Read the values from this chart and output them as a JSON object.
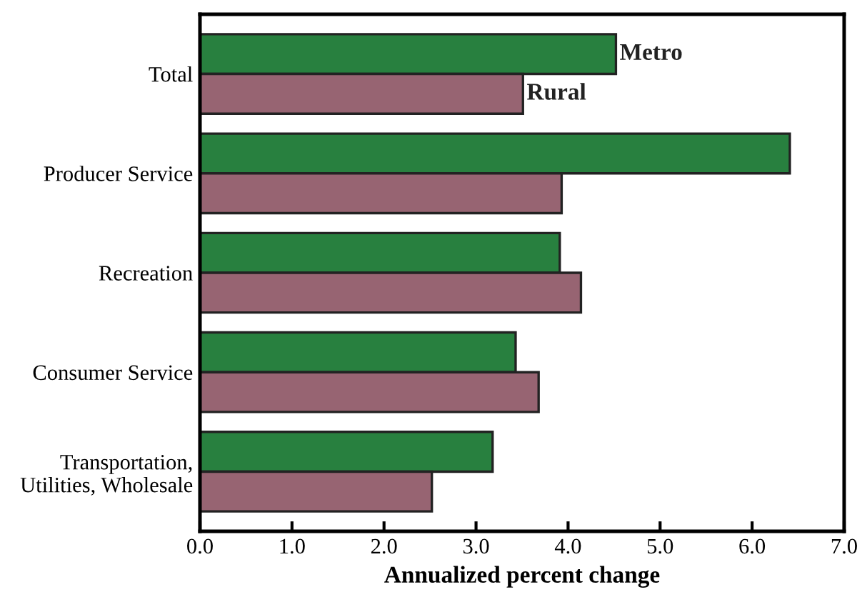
{
  "chart_data": {
    "type": "bar",
    "orientation": "horizontal",
    "xlabel": "Annualized percent change",
    "categories": [
      "Total",
      "Producer Service",
      "Recreation",
      "Consumer Service",
      "Transportation,\nUtilities, Wholesale"
    ],
    "series": [
      {
        "name": "Metro",
        "color": "#28803f",
        "values": [
          4.52,
          6.41,
          3.91,
          3.43,
          3.18
        ]
      },
      {
        "name": "Rural",
        "color": "#976472",
        "values": [
          3.51,
          3.93,
          4.14,
          3.68,
          2.52
        ]
      }
    ],
    "xlim": [
      0,
      7
    ],
    "xticks": [
      {
        "value": 0,
        "label": "0.0"
      },
      {
        "value": 1,
        "label": "1.0"
      },
      {
        "value": 2,
        "label": "2.0"
      },
      {
        "value": 3,
        "label": "3.0"
      },
      {
        "value": 4,
        "label": "4.0"
      },
      {
        "value": 5,
        "label": "5.0"
      },
      {
        "value": 6,
        "label": "6.0"
      },
      {
        "value": 7,
        "label": "7.0"
      }
    ],
    "grid": false,
    "legend": false
  }
}
